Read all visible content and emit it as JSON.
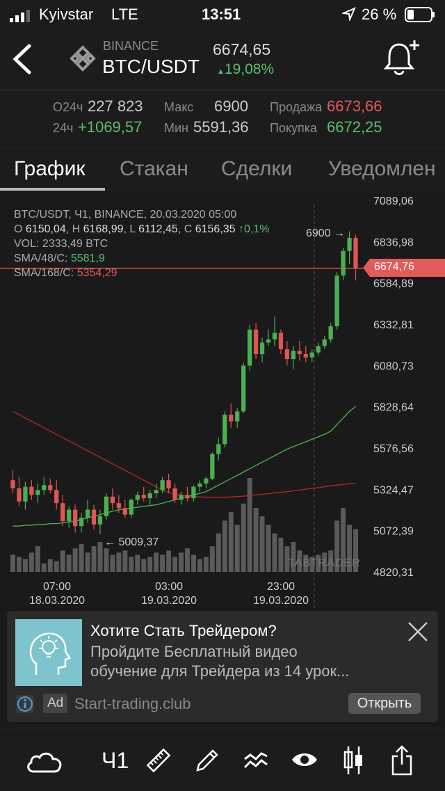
{
  "status": {
    "carrier": "Kyivstar",
    "network": "LTE",
    "time": "13:51",
    "battery": "26 %"
  },
  "header": {
    "exchange": "BINANCE",
    "pair": "BTC/USDT",
    "price": "6674,65",
    "change": "19,08%"
  },
  "stats": {
    "vol_label": "O24ч",
    "vol_value": "227 823",
    "chg_label": "24ч",
    "chg_value": "+1069,57",
    "max_label": "Макс",
    "max_value": "6900",
    "min_label": "Мин",
    "min_value": "5591,36",
    "sell_label": "Продажа",
    "sell_value": "6673,66",
    "buy_label": "Покупка",
    "buy_value": "6672,25"
  },
  "tabs": [
    "График",
    "Стакан",
    "Сделки",
    "Уведомлен"
  ],
  "chart_info": {
    "line1": "BTC/USDT, Ч1, BINANCE, 20.03.2020 05:00",
    "o_label": "O",
    "o_value": "6150,04",
    "h_label": "H",
    "h_value": "6168,99",
    "l_label": "L",
    "l_value": "6112,45",
    "c_label": "C",
    "c_value": "6156,35",
    "pct": "↑0,1%",
    "vol_label": "VOL:",
    "vol_value": "2333,49 BTC",
    "sma48_label": "SMA/48/C:",
    "sma48_value": "5581,9",
    "sma168_label": "SMA/168/C:",
    "sma168_value": "5354,29",
    "high_marker": "6900 →",
    "low_marker": "← 5009,37",
    "watermark": "TABTRADER",
    "current_price": "6674,76"
  },
  "chart_data": {
    "type": "candlestick",
    "y_ticks": [
      "7089,06",
      "6836,98",
      "6584,89",
      "6332,81",
      "6080,73",
      "5828,64",
      "5576,56",
      "5324,47",
      "5072,39",
      "4820,31"
    ],
    "ylim": [
      4820.31,
      7089.06
    ],
    "x_ticks": [
      {
        "time": "07:00",
        "date": "18.03.2020"
      },
      {
        "time": "03:00",
        "date": "19.03.2020"
      },
      {
        "time": "23:00",
        "date": "19.03.2020"
      }
    ],
    "candles": [
      [
        5380,
        5440,
        5300,
        5330
      ],
      [
        5330,
        5400,
        5220,
        5250
      ],
      [
        5250,
        5370,
        5200,
        5340
      ],
      [
        5340,
        5380,
        5260,
        5290
      ],
      [
        5290,
        5360,
        5240,
        5320
      ],
      [
        5320,
        5400,
        5290,
        5350
      ],
      [
        5350,
        5390,
        5300,
        5320
      ],
      [
        5320,
        5380,
        5200,
        5240
      ],
      [
        5240,
        5290,
        5100,
        5130
      ],
      [
        5130,
        5220,
        5090,
        5200
      ],
      [
        5200,
        5230,
        5060,
        5100
      ],
      [
        5100,
        5180,
        5060,
        5150
      ],
      [
        5150,
        5260,
        5120,
        5200
      ],
      [
        5200,
        5230,
        5080,
        5110
      ],
      [
        5110,
        5200,
        5050,
        5160
      ],
      [
        5160,
        5300,
        5140,
        5280
      ],
      [
        5280,
        5330,
        5200,
        5240
      ],
      [
        5240,
        5290,
        5180,
        5210
      ],
      [
        5210,
        5260,
        5150,
        5170
      ],
      [
        5170,
        5270,
        5150,
        5260
      ],
      [
        5260,
        5310,
        5230,
        5290
      ],
      [
        5290,
        5340,
        5250,
        5270
      ],
      [
        5270,
        5320,
        5230,
        5300
      ],
      [
        5300,
        5360,
        5270,
        5320
      ],
      [
        5320,
        5400,
        5300,
        5380
      ],
      [
        5380,
        5420,
        5300,
        5330
      ],
      [
        5330,
        5360,
        5240,
        5260
      ],
      [
        5260,
        5310,
        5230,
        5290
      ],
      [
        5290,
        5340,
        5250,
        5270
      ],
      [
        5270,
        5350,
        5250,
        5340
      ],
      [
        5340,
        5380,
        5310,
        5360
      ],
      [
        5360,
        5400,
        5330,
        5390
      ],
      [
        5390,
        5550,
        5380,
        5540
      ],
      [
        5540,
        5640,
        5500,
        5600
      ],
      [
        5600,
        5800,
        5580,
        5780
      ],
      [
        5780,
        5850,
        5700,
        5740
      ],
      [
        5740,
        5820,
        5700,
        5800
      ],
      [
        5800,
        6100,
        5790,
        6080
      ],
      [
        6080,
        6330,
        6050,
        6300
      ],
      [
        6300,
        6340,
        6120,
        6150
      ],
      [
        6150,
        6250,
        6100,
        6220
      ],
      [
        6220,
        6300,
        6200,
        6240
      ],
      [
        6240,
        6380,
        6200,
        6280
      ],
      [
        6280,
        6300,
        6150,
        6180
      ],
      [
        6180,
        6230,
        6080,
        6120
      ],
      [
        6120,
        6200,
        6060,
        6170
      ],
      [
        6170,
        6230,
        6110,
        6150
      ],
      [
        6150,
        6200,
        6100,
        6130
      ],
      [
        6130,
        6180,
        6100,
        6160
      ],
      [
        6160,
        6220,
        6140,
        6200
      ],
      [
        6200,
        6260,
        6180,
        6240
      ],
      [
        6240,
        6340,
        6220,
        6320
      ],
      [
        6320,
        6650,
        6300,
        6630
      ],
      [
        6630,
        6800,
        6600,
        6780
      ],
      [
        6780,
        6900,
        6700,
        6860
      ],
      [
        6860,
        6880,
        6600,
        6674
      ]
    ],
    "sma48": [
      5100,
      5100,
      5105,
      5105,
      5110,
      5110,
      5115,
      5115,
      5120,
      5125,
      5130,
      5140,
      5150,
      5160,
      5170,
      5180,
      5190,
      5200,
      5205,
      5210,
      5215,
      5220,
      5225,
      5230,
      5240,
      5250,
      5260,
      5270,
      5280,
      5290,
      5300,
      5310,
      5330,
      5350,
      5370,
      5390,
      5410,
      5430,
      5450,
      5470,
      5490,
      5510,
      5530,
      5550,
      5570,
      5585,
      5600,
      5615,
      5630,
      5645,
      5660,
      5680,
      5720,
      5760,
      5800,
      5830
    ],
    "sma168": [
      5800,
      5780,
      5760,
      5740,
      5720,
      5700,
      5680,
      5660,
      5640,
      5620,
      5600,
      5580,
      5560,
      5540,
      5520,
      5500,
      5480,
      5460,
      5440,
      5420,
      5400,
      5380,
      5360,
      5340,
      5320,
      5305,
      5295,
      5290,
      5285,
      5280,
      5278,
      5276,
      5275,
      5275,
      5276,
      5278,
      5280,
      5283,
      5286,
      5290,
      5294,
      5298,
      5302,
      5306,
      5310,
      5315,
      5320,
      5325,
      5330,
      5335,
      5340,
      5345,
      5350,
      5354,
      5358,
      5360
    ],
    "volumes": [
      40,
      35,
      30,
      45,
      60,
      20,
      30,
      25,
      50,
      40,
      55,
      65,
      45,
      60,
      70,
      55,
      40,
      45,
      50,
      35,
      40,
      30,
      35,
      45,
      40,
      50,
      35,
      45,
      55,
      40,
      30,
      35,
      60,
      90,
      120,
      140,
      110,
      160,
      220,
      150,
      130,
      110,
      90,
      80,
      60,
      70,
      50,
      40,
      35,
      40,
      45,
      50,
      120,
      150,
      110,
      100
    ]
  },
  "ad": {
    "title": "Хотите Стать Трейдером?",
    "body1": "Пройдите Бесплатный видео",
    "body2": "обучение для Трейдера из 14 урок...",
    "badge": "Ad",
    "domain": "Start-trading.club",
    "cta": "Открыть"
  },
  "toolbar": {
    "interval": "Ч1"
  }
}
